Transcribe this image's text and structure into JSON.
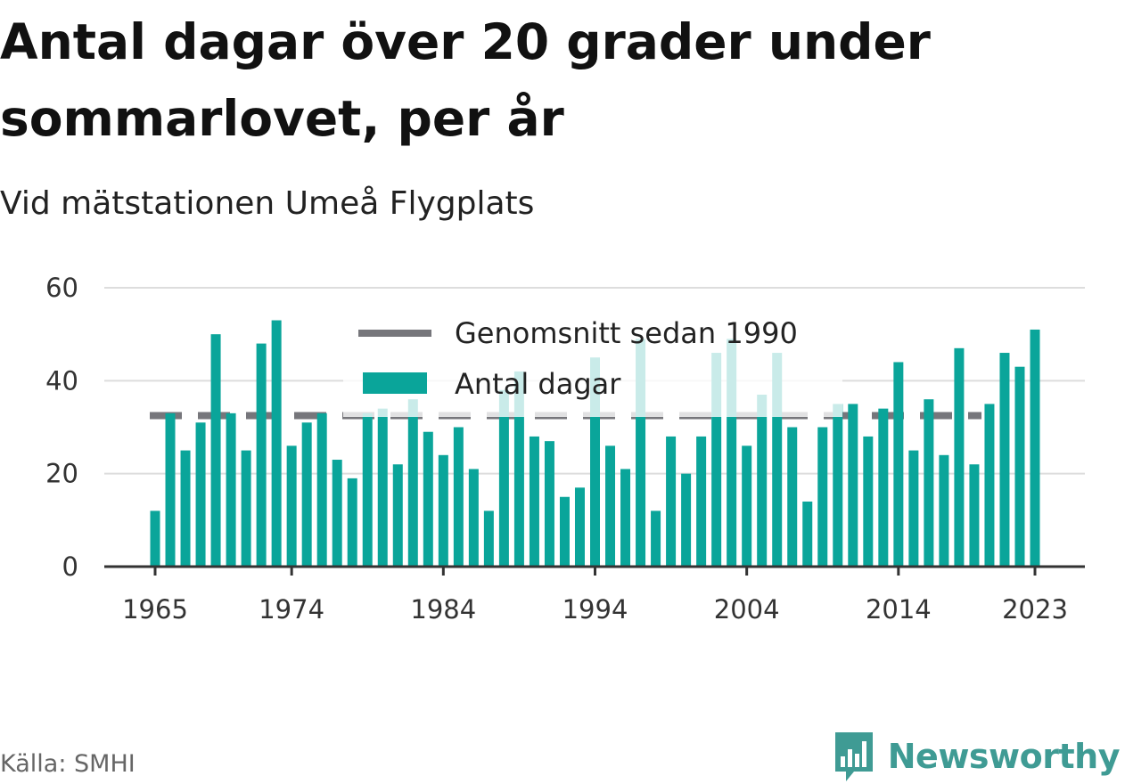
{
  "title": "Antal dagar över 20 grader under sommarlovet, per år",
  "subtitle": "Vid mätstationen Umeå Flygplats",
  "source": "Källa: SMHI",
  "logo_text": "Newsworthy",
  "colors": {
    "bar": "#0aa59a",
    "average_line": "#76767b",
    "grid": "#dddddd",
    "axis": "#333333",
    "logo": "#3f9b94"
  },
  "chart_data": {
    "type": "bar",
    "x": [
      1965,
      1966,
      1967,
      1968,
      1969,
      1970,
      1971,
      1972,
      1973,
      1974,
      1975,
      1976,
      1977,
      1978,
      1979,
      1980,
      1981,
      1982,
      1983,
      1984,
      1985,
      1986,
      1987,
      1988,
      1989,
      1990,
      1991,
      1992,
      1993,
      1994,
      1995,
      1996,
      1997,
      1998,
      1999,
      2000,
      2001,
      2002,
      2003,
      2004,
      2005,
      2006,
      2007,
      2008,
      2009,
      2010,
      2011,
      2012,
      2013,
      2014,
      2015,
      2016,
      2017,
      2018,
      2019,
      2020,
      2021,
      2022,
      2023
    ],
    "xticks": [
      "1965",
      "1974",
      "1984",
      "1994",
      "2004",
      "2014",
      "2023"
    ],
    "yticks": [
      "0",
      "20",
      "40",
      "60"
    ],
    "ylim": [
      0,
      60
    ],
    "series": [
      {
        "name": "Antal dagar",
        "type": "bar",
        "values": [
          12,
          33,
          25,
          31,
          50,
          33,
          25,
          48,
          53,
          26,
          31,
          33,
          23,
          19,
          33,
          34,
          22,
          36,
          29,
          24,
          30,
          21,
          12,
          38,
          42,
          28,
          27,
          15,
          17,
          45,
          26,
          21,
          49,
          12,
          28,
          20,
          28,
          46,
          49,
          26,
          37,
          46,
          30,
          14,
          30,
          35,
          35,
          28,
          34,
          44,
          25,
          36,
          24,
          47,
          22,
          35,
          46,
          43,
          51
        ]
      },
      {
        "name": "Genomsnitt sedan 1990",
        "type": "line",
        "value": 32.5
      }
    ],
    "legend": "top-center",
    "grid": true
  }
}
